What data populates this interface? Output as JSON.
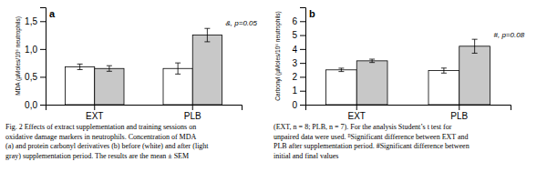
{
  "chart_data": [
    {
      "type": "bar",
      "title": "a",
      "y_label": "MDA (µMoles/10⁶ neutrophils)",
      "categories": [
        "EXT",
        "PLB"
      ],
      "series": [
        {
          "color": "#ffffff",
          "values": [
            0.68,
            0.65
          ],
          "errors": [
            0.05,
            0.1
          ]
        },
        {
          "color": "#c8c8c8",
          "values": [
            0.65,
            1.25
          ],
          "errors": [
            0.05,
            0.12
          ]
        }
      ],
      "ylim": [
        0,
        1.75
      ],
      "yticks": [
        {
          "value": 0.0,
          "label": "0,0"
        },
        {
          "value": 0.5,
          "label": "0,5"
        },
        {
          "value": 1.0,
          "label": "1,0"
        },
        {
          "value": 1.5,
          "label": "1,5"
        }
      ],
      "annotations": [
        {
          "text": "&, p=0.05",
          "y": 1.42
        }
      ],
      "caption": "Fig. 2  Effects of extract supplementation and training sessions on\noxidative damage markers in neutrophils. Concentration of MDA\n(a) and protein carbonyl derivatives (b) before (white) and after (light\ngray) supplementation period. The results are the mean ± SEM",
      "grid": false
    },
    {
      "type": "bar",
      "title": "b",
      "y_label": "Carbonyl (µMoles/10⁶ neutrophils)",
      "categories": [
        "EXT",
        "PLB"
      ],
      "series": [
        {
          "color": "#ffffff",
          "values": [
            2.5,
            2.45
          ],
          "errors": [
            0.12,
            0.18
          ]
        },
        {
          "color": "#c8c8c8",
          "values": [
            3.15,
            4.2
          ],
          "errors": [
            0.12,
            0.5
          ]
        }
      ],
      "ylim": [
        0,
        7.0
      ],
      "yticks": [
        0,
        1,
        2,
        3,
        4,
        5,
        6
      ],
      "annotations": [
        {
          "text": "#, p=0.08",
          "y": 4.85
        }
      ],
      "caption": "(EXT, n = 8; PLB, n = 7). For the analysis Student’s t test for\nunpaired data were used. ᴮSignificant difference between EXT and\nPLB after supplementation period. #Significant difference between\ninitial and final values",
      "grid": false
    }
  ]
}
